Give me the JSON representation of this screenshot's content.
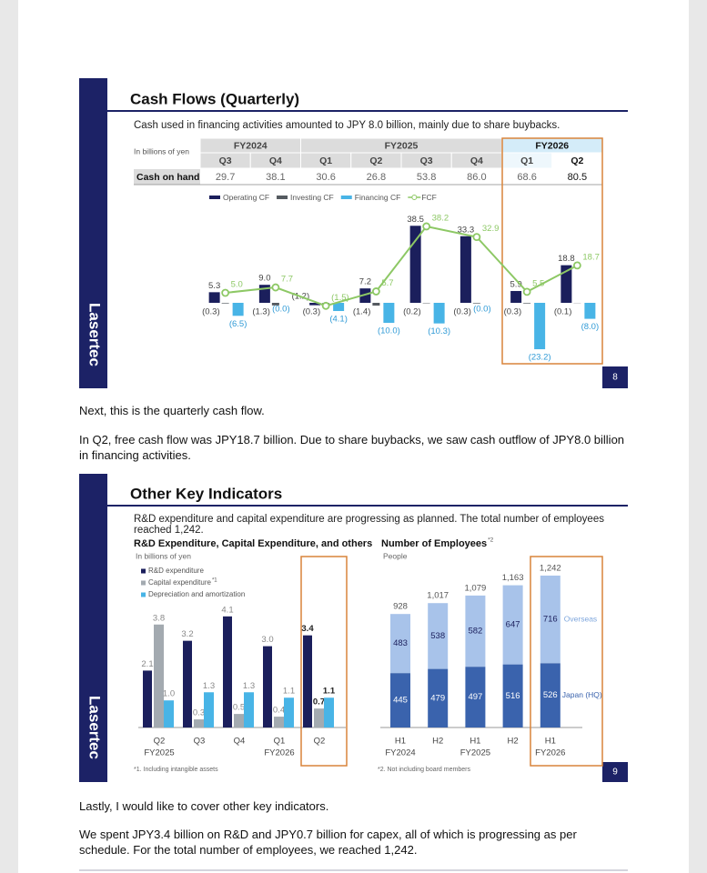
{
  "slides": [
    {
      "title": "Cash Flows (Quarterly)",
      "subtitle": "Cash used in financing activities amounted to JPY 8.0 billion, mainly due to share buybacks.",
      "brand": "Lasertec",
      "page_number": "8",
      "table": {
        "unit": "In billions of yen",
        "fiscal_years": [
          "FY2024",
          "FY2025",
          "FY2026"
        ],
        "row_label": "Cash on hand",
        "cash_on_hand": [
          "29.7",
          "38.1",
          "30.6",
          "26.8",
          "53.8",
          "86.0",
          "68.6",
          "80.5"
        ]
      }
    },
    {
      "title": "Other Key Indicators",
      "subtitle": "R&D expenditure and capital expenditure are progressing as planned. The total number of employees reached 1,242.",
      "brand": "Lasertec",
      "page_number": "9"
    }
  ],
  "paragraphs": [
    "Next, this is the quarterly cash flow.",
    "In Q2, free cash flow was JPY18.7 billion. Due to share buybacks, we saw cash outflow of JPY8.0 billion in financing activities.",
    "Lastly, I would like to cover other key indicators.",
    "We spent JPY3.4 billion on R&D and JPY0.7 billion for capex, all of which is progressing as per schedule. For the total number of employees, we reached 1,242."
  ],
  "chart_data": [
    {
      "type": "bar",
      "categories": [
        "Q3",
        "Q4",
        "Q1",
        "Q2",
        "Q3",
        "Q4",
        "Q1",
        "Q2"
      ],
      "series": [
        {
          "name": "Operating CF",
          "color": "#1b1f5c",
          "values": [
            5.3,
            9.0,
            -1.2,
            7.2,
            38.5,
            33.3,
            5.9,
            18.8
          ],
          "value_labels": [
            "5.3",
            "9.0",
            "(1.2)",
            "7.2",
            "38.5",
            "33.3",
            "5.9",
            "18.8"
          ]
        },
        {
          "name": "Investing CF",
          "color": "#555a60",
          "values": [
            -0.3,
            -1.3,
            -0.3,
            -1.4,
            -0.2,
            -0.3,
            -0.3,
            -0.1
          ],
          "value_labels": [
            "(0.3)",
            "(1.3)",
            "(0.3)",
            "(1.4)",
            "(0.2)",
            "(0.3)",
            "(0.3)",
            "(0.1)"
          ]
        },
        {
          "name": "Financing CF",
          "color": "#48b4e6",
          "values": [
            -6.5,
            0,
            -4.1,
            -10.0,
            -10.3,
            0,
            -23.2,
            -8.0
          ],
          "value_labels": [
            "(6.5)",
            "(0.0)",
            "(4.1)",
            "(10.0)",
            "(10.3)",
            "(0.0)",
            "(23.2)",
            "(8.0)"
          ]
        },
        {
          "name": "FCF",
          "type": "line",
          "color": "#8dc865",
          "values": [
            5.0,
            7.7,
            -1.5,
            5.7,
            38.2,
            32.9,
            5.5,
            18.7
          ],
          "value_labels": [
            "5.0",
            "7.7",
            "(1.5)",
            "5.7",
            "38.2",
            "32.9",
            "5.5",
            "18.7"
          ]
        }
      ]
    },
    {
      "type": "bar",
      "title": "R&D Expenditure, Capital Expenditure, and others",
      "unit": "In billions of yen",
      "categories": [
        "Q2",
        "Q3",
        "Q4",
        "Q1",
        "Q2"
      ],
      "category_groups": [
        "FY2025",
        null,
        null,
        "FY2026",
        null
      ],
      "series": [
        {
          "name": "R&D expenditure",
          "color": "#1b1f5c",
          "values": [
            2.1,
            3.2,
            4.1,
            3.0,
            3.4
          ],
          "value_labels": [
            "2.1",
            "3.2",
            "4.1",
            "3.0",
            "3.4"
          ]
        },
        {
          "name": "Capital expenditure",
          "name_note": "*1",
          "color": "#a3aab0",
          "values": [
            3.8,
            0.3,
            0.5,
            0.4,
            0.7
          ],
          "value_labels": [
            "3.8",
            "0.3",
            "0.5",
            "0.4",
            "0.7"
          ]
        },
        {
          "name": "Depreciation and amortization",
          "color": "#48b4e6",
          "values": [
            1.0,
            1.3,
            1.3,
            1.1,
            1.1
          ],
          "value_labels": [
            "1.0",
            "1.3",
            "1.3",
            "1.1",
            "1.1"
          ]
        }
      ],
      "footnote": "*1. Including intangible assets"
    },
    {
      "type": "stacked_bar",
      "title": "Number of Employees",
      "title_note": "*2",
      "unit": "People",
      "categories": [
        "H1",
        "H2",
        "H1",
        "H2",
        "H1"
      ],
      "category_groups": [
        "FY2024",
        null,
        "FY2025",
        null,
        "FY2026"
      ],
      "series": [
        {
          "name": "Japan (HQ)",
          "color": "#3a63ad",
          "values": [
            445,
            479,
            497,
            516,
            526
          ]
        },
        {
          "name": "Overseas",
          "color": "#a8c3ea",
          "values": [
            483,
            538,
            582,
            647,
            716
          ]
        }
      ],
      "totals": [
        928,
        1017,
        1079,
        1163,
        1242
      ],
      "total_labels": [
        "928",
        "1,017",
        "1,079",
        "1,163",
        "1,242"
      ],
      "footnote": "*2. Not including board members"
    }
  ]
}
